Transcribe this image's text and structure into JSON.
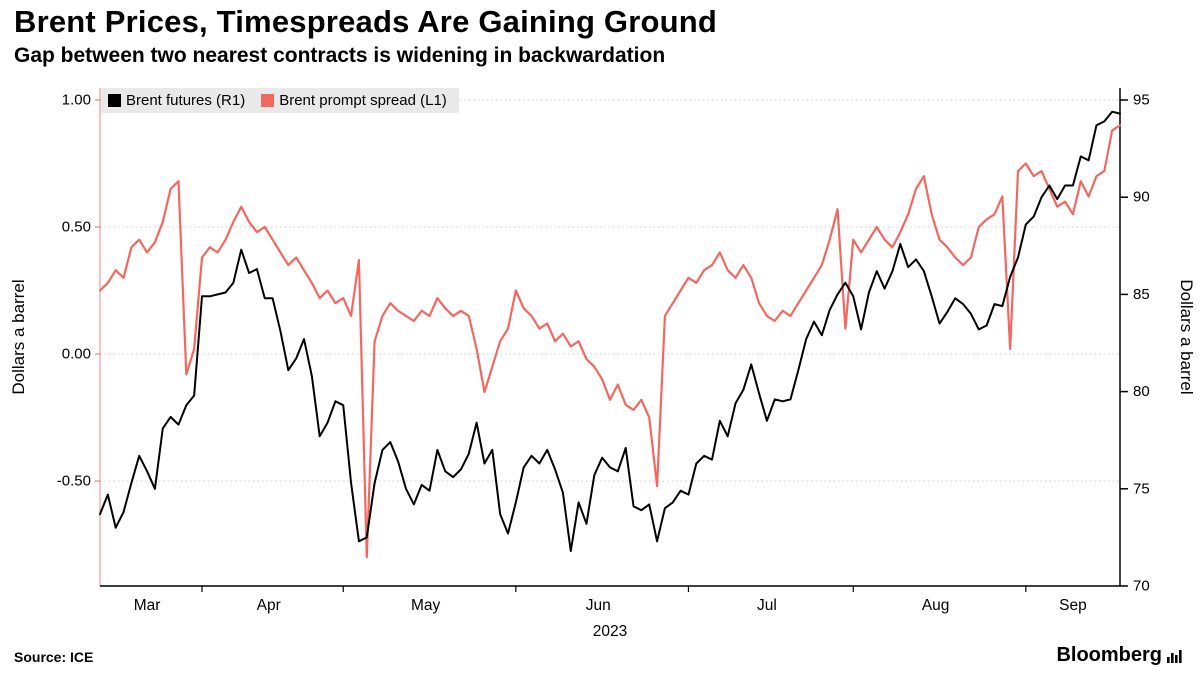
{
  "header": {
    "title": "Brent Prices, Timespreads Are Gaining Ground",
    "subtitle": "Gap between two nearest contracts is widening in backwardation"
  },
  "footer": {
    "source": "Source: ICE",
    "brand": "Bloomberg"
  },
  "chart_data": {
    "type": "line",
    "title": "Brent Prices, Timespreads Are Gaining Ground",
    "subtitle": "Gap between two nearest contracts is widening in backwardation",
    "x_tick_labels": [
      "Mar",
      "Apr",
      "May",
      "Jun",
      "Jul",
      "Aug",
      "Sep"
    ],
    "x_year_label": "2023",
    "legend_position": "top-left inside plot",
    "grid": "horizontal dotted at left-axis ticks",
    "left_axis": {
      "label": "Dollars a barrel",
      "ticks": [
        "1.00",
        "0.50",
        "0.00",
        "-0.50"
      ],
      "tick_values": [
        1.0,
        0.5,
        0.0,
        -0.5
      ],
      "range": [
        -0.913,
        1.047
      ]
    },
    "right_axis": {
      "label": "Dollars a barrel",
      "ticks": [
        "95",
        "90",
        "85",
        "80",
        "75",
        "70"
      ],
      "tick_values": [
        95,
        90,
        85,
        80,
        75,
        70
      ],
      "range": [
        70,
        95.617
      ]
    },
    "month_boundaries_idx": [
      13,
      31,
      53,
      75,
      96,
      118
    ],
    "month_centers_idx": [
      6,
      21.5,
      41.5,
      63.5,
      85,
      106.5,
      124
    ],
    "series": [
      {
        "name": "Brent futures (R1)",
        "axis": "right",
        "color": "#000000",
        "values": [
          73.7,
          74.7,
          73.0,
          73.8,
          75.3,
          76.7,
          75.9,
          75.0,
          78.1,
          78.7,
          78.3,
          79.3,
          79.8,
          84.9,
          84.9,
          85.0,
          85.1,
          85.6,
          87.3,
          86.1,
          86.3,
          84.8,
          84.8,
          83.1,
          81.1,
          81.7,
          82.7,
          80.8,
          77.7,
          78.4,
          79.5,
          79.3,
          75.3,
          72.3,
          72.5,
          75.3,
          77.0,
          77.4,
          76.4,
          75.0,
          74.2,
          75.2,
          74.9,
          77.0,
          75.9,
          75.6,
          76.0,
          76.8,
          78.4,
          76.3,
          77.0,
          73.7,
          72.7,
          74.3,
          76.1,
          76.7,
          76.3,
          77.0,
          76.0,
          74.8,
          71.8,
          74.3,
          73.2,
          75.7,
          76.6,
          76.1,
          75.9,
          77.1,
          74.1,
          73.9,
          74.2,
          72.3,
          74.0,
          74.3,
          74.9,
          74.7,
          76.3,
          76.7,
          76.5,
          78.5,
          77.7,
          79.4,
          80.1,
          81.4,
          79.9,
          78.5,
          79.6,
          79.5,
          79.6,
          81.1,
          82.7,
          83.6,
          82.9,
          84.2,
          85.0,
          85.6,
          84.9,
          83.2,
          85.1,
          86.2,
          85.3,
          86.2,
          87.6,
          86.4,
          86.8,
          86.2,
          84.9,
          83.5,
          84.1,
          84.8,
          84.5,
          84.0,
          83.2,
          83.4,
          84.5,
          84.4,
          85.9,
          86.9,
          88.6,
          89.0,
          90.0,
          90.6,
          89.9,
          90.6,
          90.6,
          92.1,
          91.9,
          93.7,
          93.9,
          94.4,
          94.3
        ]
      },
      {
        "name": "Brent prompt spread (L1)",
        "axis": "left",
        "color": "#f1685f",
        "values": [
          0.25,
          0.28,
          0.33,
          0.3,
          0.42,
          0.45,
          0.4,
          0.44,
          0.52,
          0.65,
          0.68,
          -0.08,
          0.02,
          0.38,
          0.42,
          0.4,
          0.45,
          0.52,
          0.58,
          0.52,
          0.48,
          0.5,
          0.45,
          0.4,
          0.35,
          0.38,
          0.33,
          0.28,
          0.22,
          0.25,
          0.2,
          0.22,
          0.15,
          0.37,
          -0.8,
          0.05,
          0.15,
          0.2,
          0.17,
          0.15,
          0.13,
          0.17,
          0.15,
          0.22,
          0.18,
          0.15,
          0.17,
          0.15,
          0.02,
          -0.15,
          -0.05,
          0.05,
          0.1,
          0.25,
          0.18,
          0.15,
          0.1,
          0.12,
          0.05,
          0.08,
          0.03,
          0.05,
          -0.02,
          -0.05,
          -0.1,
          -0.18,
          -0.12,
          -0.2,
          -0.22,
          -0.18,
          -0.25,
          -0.52,
          0.15,
          0.2,
          0.25,
          0.3,
          0.28,
          0.33,
          0.35,
          0.4,
          0.33,
          0.3,
          0.35,
          0.3,
          0.2,
          0.15,
          0.13,
          0.17,
          0.15,
          0.2,
          0.25,
          0.3,
          0.35,
          0.45,
          0.57,
          0.1,
          0.45,
          0.4,
          0.45,
          0.5,
          0.45,
          0.42,
          0.48,
          0.55,
          0.65,
          0.7,
          0.55,
          0.45,
          0.42,
          0.38,
          0.35,
          0.38,
          0.5,
          0.53,
          0.55,
          0.62,
          0.02,
          0.72,
          0.75,
          0.7,
          0.72,
          0.65,
          0.58,
          0.6,
          0.55,
          0.68,
          0.62,
          0.7,
          0.72,
          0.88,
          0.9
        ]
      }
    ]
  },
  "colors": {
    "futures_line": "#000000",
    "spread_line": "#f1685f",
    "gridline": "#c9c9c9",
    "legend_bg": "#e9e9e9"
  }
}
